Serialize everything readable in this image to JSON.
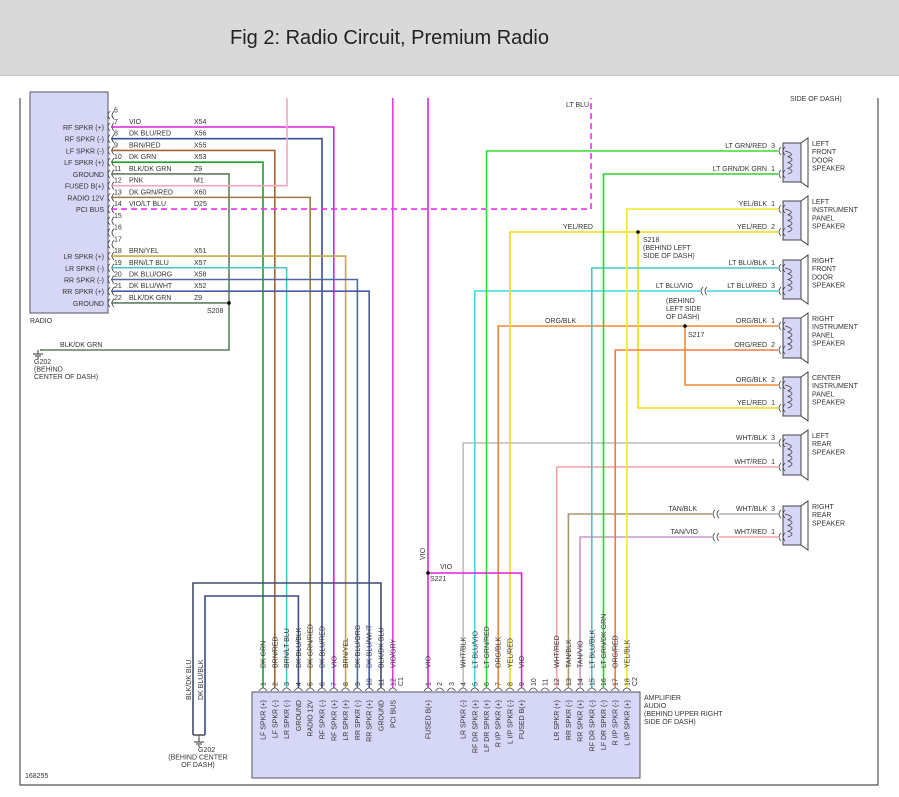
{
  "header": {
    "title": "Fig 2: Radio Circuit, Premium Radio"
  },
  "figure_id": "168255",
  "colors": {
    "VIO": "#e020e0",
    "DK BLU/RED": "#3a4aa0",
    "BRN/RED": "#a8642a",
    "DK GRN": "#1e9e2a",
    "BLK/DK GRN": "#5f7f60",
    "PNK": "#f4a6c4",
    "DK GRN/RED": "#9a7a40",
    "VIO/LT BLU": "#ee30ee",
    "BRN/YEL": "#c8a848",
    "BRN/LT BLU": "#40c8c8",
    "DK BLU/ORG": "#506a9a",
    "DK BLU/WHT": "#4a5aa8",
    "DK BLU/BLK": "#3a4a8a",
    "BLK/DK BLU": "#404a70",
    "VIO/GRY": "#e040e0",
    "WHT/BLK": "#bdbdbd",
    "LT BLU/VIO": "#40d8e8",
    "LT GRN/RED": "#30e030",
    "ORG/BLK": "#f08a30",
    "YEL/RED": "#f0dc10",
    "WHT/RED": "#f4a0a0",
    "TAN/BLK": "#a89870",
    "TAN/VIO": "#c898c8",
    "LT BLU/BLK": "#40c8d0",
    "LT GRN/DK GRN": "#30d030",
    "ORG/RED": "#f47a44",
    "YEL/BLK": "#f4e820",
    "WHT/BLK_rear": "#b0b0b0",
    "LT BLU/RED": "#48d0e0",
    "frame": "#555555",
    "module_fill": "#d6d6f6"
  },
  "radio": {
    "name": "RADIO",
    "pins": [
      {
        "pin": "6",
        "label": "",
        "wire": "",
        "circuit": ""
      },
      {
        "pin": "7",
        "label": "RF SPKR (+)",
        "wire": "VIO",
        "circuit": "X54"
      },
      {
        "pin": "8",
        "label": "RF SPKR (-)",
        "wire": "DK BLU/RED",
        "circuit": "X56"
      },
      {
        "pin": "9",
        "label": "LF SPKR (-)",
        "wire": "BRN/RED",
        "circuit": "X55"
      },
      {
        "pin": "10",
        "label": "LF SPKR (+)",
        "wire": "DK GRN",
        "circuit": "X53"
      },
      {
        "pin": "11",
        "label": "GROUND",
        "wire": "BLK/DK GRN",
        "circuit": "Z9"
      },
      {
        "pin": "12",
        "label": "FUSED B(+)",
        "wire": "PNK",
        "circuit": "M1"
      },
      {
        "pin": "13",
        "label": "RADIO 12V",
        "wire": "DK GRN/RED",
        "circuit": "X60"
      },
      {
        "pin": "14",
        "label": "PCI BUS",
        "wire": "VIO/LT BLU",
        "circuit": "D25"
      },
      {
        "pin": "15",
        "label": "",
        "wire": "",
        "circuit": ""
      },
      {
        "pin": "16",
        "label": "",
        "wire": "",
        "circuit": ""
      },
      {
        "pin": "17",
        "label": "",
        "wire": "",
        "circuit": ""
      },
      {
        "pin": "18",
        "label": "LR SPKR (+)",
        "wire": "BRN/YEL",
        "circuit": "X51"
      },
      {
        "pin": "19",
        "label": "LR SPKR (-)",
        "wire": "BRN/LT BLU",
        "circuit": "X57"
      },
      {
        "pin": "20",
        "label": "RR SPKR (-)",
        "wire": "DK BLU/ORG",
        "circuit": "X58"
      },
      {
        "pin": "21",
        "label": "RR SPKR (+)",
        "wire": "DK BLU/WHT",
        "circuit": "X52"
      },
      {
        "pin": "22",
        "label": "GROUND",
        "wire": "BLK/DK GRN",
        "circuit": "Z9"
      }
    ]
  },
  "amplifier": {
    "name_lines": [
      "AMPLIFIER",
      "AUDIO",
      "(BEHIND UPPER RIGHT",
      "SIDE OF DASH)"
    ],
    "c1": {
      "label": "C1",
      "pins": [
        {
          "pin": "1",
          "function": "LF SPKR (+)",
          "wire": "DK GRN"
        },
        {
          "pin": "2",
          "function": "LF SPKR (-)",
          "wire": "BRN/RED"
        },
        {
          "pin": "3",
          "function": "LR SPKR (-)",
          "wire": "BRN/LT BLU"
        },
        {
          "pin": "4",
          "function": "GROUND",
          "wire": "DK BLU/BLK"
        },
        {
          "pin": "5",
          "function": "RADIO 12V",
          "wire": "DK GRN/RED"
        },
        {
          "pin": "6",
          "function": "RF SPKR (-)",
          "wire": "DK BLU/RED"
        },
        {
          "pin": "7",
          "function": "RF SPKR (+)",
          "wire": "VIO"
        },
        {
          "pin": "8",
          "function": "LR SPKR (+)",
          "wire": "BRN/YEL"
        },
        {
          "pin": "9",
          "function": "RR SPKR (-)",
          "wire": "DK BLU/ORG"
        },
        {
          "pin": "10",
          "function": "RR SPKR (+)",
          "wire": "DK BLU/WHT"
        },
        {
          "pin": "11",
          "function": "GROUND",
          "wire": "BLK/DK BLU"
        },
        {
          "pin": "12",
          "function": "PCI BUS",
          "wire": "VIO/GRY"
        }
      ]
    },
    "c2": {
      "label": "C2",
      "pins": [
        {
          "pin": "1",
          "function": "FUSED B(+)",
          "wire": "VIO"
        },
        {
          "pin": "2",
          "function": "",
          "wire": ""
        },
        {
          "pin": "3",
          "function": "",
          "wire": ""
        },
        {
          "pin": "4",
          "function": "LR SPKR (-)",
          "wire": "WHT/BLK"
        },
        {
          "pin": "5",
          "function": "RF DR SPKR (+)",
          "wire": "LT BLU/VIO"
        },
        {
          "pin": "6",
          "function": "LF DR SPKR (+)",
          "wire": "LT GRN/RED"
        },
        {
          "pin": "7",
          "function": "R I/P SPKR (+)",
          "wire": "ORG/BLK"
        },
        {
          "pin": "8",
          "function": "L I/P SPKR (-)",
          "wire": "YEL/RED"
        },
        {
          "pin": "9",
          "function": "FUSED B(+)",
          "wire": "VIO"
        },
        {
          "pin": "10",
          "function": "",
          "wire": ""
        },
        {
          "pin": "11",
          "function": "",
          "wire": ""
        },
        {
          "pin": "12",
          "function": "LR SPKR (+)",
          "wire": "WHT/RED"
        },
        {
          "pin": "13",
          "function": "RR SPKR (-)",
          "wire": "TAN/BLK"
        },
        {
          "pin": "14",
          "function": "RR SPKR (+)",
          "wire": "TAN/VIO"
        },
        {
          "pin": "15",
          "function": "RF DR SPKR (-)",
          "wire": "LT BLU/BLK"
        },
        {
          "pin": "16",
          "function": "LF DR SPKR (-)",
          "wire": "LT GRN/DK GRN"
        },
        {
          "pin": "17",
          "function": "R I/P SPKR (-)",
          "wire": "ORG/RED"
        },
        {
          "pin": "18",
          "function": "L I/P SPKR (+)",
          "wire": "YEL/BLK"
        }
      ]
    }
  },
  "speakers": [
    {
      "name_lines": [
        "LEFT",
        "FRONT",
        "DOOR",
        "SPEAKER"
      ],
      "pins": [
        {
          "wire": "LT GRN/RED",
          "pin": "3"
        },
        {
          "wire": "LT GRN/DK GRN",
          "pin": "1"
        }
      ]
    },
    {
      "name_lines": [
        "LEFT",
        "INSTRUMENT",
        "PANEL",
        "SPEAKER"
      ],
      "pins": [
        {
          "wire": "YEL/BLK",
          "pin": "1"
        },
        {
          "wire": "YEL/RED",
          "pin": "2"
        }
      ]
    },
    {
      "name_lines": [
        "RIGHT",
        "FRONT",
        "DOOR",
        "SPEAKER"
      ],
      "pins": [
        {
          "wire": "LT BLU/BLK",
          "pin": "1"
        },
        {
          "wire": "LT BLU/RED",
          "pin": "3"
        }
      ]
    },
    {
      "name_lines": [
        "RIGHT",
        "INSTRUMENT",
        "PANEL",
        "SPEAKER"
      ],
      "pins": [
        {
          "wire": "ORG/BLK",
          "pin": "1"
        },
        {
          "wire": "ORG/RED",
          "pin": "2"
        }
      ]
    },
    {
      "name_lines": [
        "CENTER",
        "INSTRUMENT",
        "PANEL",
        "SPEAKER"
      ],
      "pins": [
        {
          "wire": "ORG/BLK",
          "pin": "2"
        },
        {
          "wire": "YEL/RED",
          "pin": "1"
        }
      ]
    },
    {
      "name_lines": [
        "LEFT",
        "REAR",
        "SPEAKER"
      ],
      "pins": [
        {
          "wire": "WHT/BLK",
          "pin": "3"
        },
        {
          "wire": "WHT/RED",
          "pin": "1"
        }
      ]
    },
    {
      "name_lines": [
        "RIGHT",
        "REAR",
        "SPEAKER"
      ],
      "pins": [
        {
          "wire": "WHT/BLK",
          "pin": "3"
        },
        {
          "wire": "WHT/RED",
          "pin": "1"
        }
      ]
    }
  ],
  "splices": {
    "s208": "S208",
    "s221": "S221",
    "s218": {
      "name": "S218",
      "location_lines": [
        "(BEHIND LEFT",
        "SIDE OF DASH)"
      ]
    },
    "s217": {
      "name": "S217",
      "location_lines": [
        "(BEHIND",
        "LEFT SIDE",
        "OF DASH)"
      ]
    }
  },
  "grounds": {
    "left": {
      "wire": "BLK/DK GRN",
      "lines": [
        "G202",
        "(BEHIND",
        "CENTER OF DASH)"
      ]
    },
    "bottom": {
      "wires": [
        "BLK/DK BLU",
        "DK BLU/BLK"
      ],
      "lines": [
        "G202",
        "(BEHIND CENTER",
        "OF DASH)"
      ]
    }
  },
  "misc_labels": {
    "lt_blu": "LT BLU",
    "top_right": "SIDE OF DASH)",
    "vio_a": "VIO",
    "vio_b": "VIO",
    "yel_red": "YEL/RED",
    "org_blk": "ORG/BLK",
    "lt_blu_vio": "LT BLU/VIO",
    "tan_blk": "TAN/BLK",
    "tan_vio": "TAN/VIO"
  }
}
